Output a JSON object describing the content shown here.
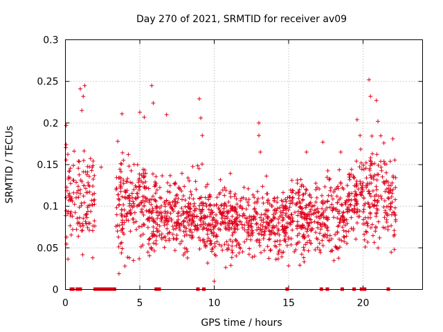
{
  "chart_data": {
    "type": "scatter",
    "title": "Day 270 of 2021, SRMTID for receiver av09",
    "xlabel": "GPS time / hours",
    "ylabel": "SRMTID / TECUs",
    "xlim": [
      0,
      24
    ],
    "ylim": [
      0,
      0.3
    ],
    "xticks": [
      0,
      5,
      10,
      15,
      20
    ],
    "xtick_labels": [
      "0",
      "5",
      "10",
      "15",
      "20"
    ],
    "yticks": [
      0,
      0.05,
      0.1,
      0.15,
      0.2,
      0.25,
      0.3
    ],
    "ytick_labels": [
      "0",
      "0.05",
      "0.1",
      "0.15",
      "0.2",
      "0.25",
      "0.3"
    ],
    "grid": true,
    "marker": "plus",
    "color": "#e0001a",
    "series": [
      {
        "name": "SRMTID",
        "segments": [
          {
            "x_start": 0.0,
            "x_end": 2.0,
            "y_center": 0.115,
            "y_spread": 0.04,
            "count": 130
          },
          {
            "x_start": 3.4,
            "x_end": 5.5,
            "y_center": 0.105,
            "y_spread": 0.035,
            "count": 170
          },
          {
            "x_start": 5.5,
            "x_end": 9.5,
            "y_center": 0.09,
            "y_spread": 0.03,
            "count": 330
          },
          {
            "x_start": 9.5,
            "x_end": 15.0,
            "y_center": 0.08,
            "y_spread": 0.027,
            "count": 450
          },
          {
            "x_start": 15.0,
            "x_end": 19.0,
            "y_center": 0.088,
            "y_spread": 0.03,
            "count": 320
          },
          {
            "x_start": 19.0,
            "x_end": 22.2,
            "y_center": 0.11,
            "y_spread": 0.035,
            "count": 250
          }
        ],
        "outliers": [
          {
            "x": 0.05,
            "y": 0.197
          },
          {
            "x": 0.05,
            "y": 0.174
          },
          {
            "x": 1.0,
            "y": 0.241
          },
          {
            "x": 1.3,
            "y": 0.245
          },
          {
            "x": 1.2,
            "y": 0.232
          },
          {
            "x": 1.1,
            "y": 0.215
          },
          {
            "x": 2.4,
            "y": 0.147
          },
          {
            "x": 3.6,
            "y": 0.019
          },
          {
            "x": 3.8,
            "y": 0.211
          },
          {
            "x": 4.0,
            "y": 0.028
          },
          {
            "x": 4.3,
            "y": 0.038
          },
          {
            "x": 5.0,
            "y": 0.213
          },
          {
            "x": 5.3,
            "y": 0.207
          },
          {
            "x": 5.8,
            "y": 0.245
          },
          {
            "x": 5.9,
            "y": 0.224
          },
          {
            "x": 6.8,
            "y": 0.21
          },
          {
            "x": 9.0,
            "y": 0.229
          },
          {
            "x": 9.1,
            "y": 0.206
          },
          {
            "x": 9.2,
            "y": 0.185
          },
          {
            "x": 10.0,
            "y": 0.01
          },
          {
            "x": 13.0,
            "y": 0.2
          },
          {
            "x": 13.0,
            "y": 0.185
          },
          {
            "x": 13.1,
            "y": 0.165
          },
          {
            "x": 16.2,
            "y": 0.165
          },
          {
            "x": 17.3,
            "y": 0.177
          },
          {
            "x": 18.5,
            "y": 0.165
          },
          {
            "x": 19.6,
            "y": 0.204
          },
          {
            "x": 19.8,
            "y": 0.185
          },
          {
            "x": 20.4,
            "y": 0.252
          },
          {
            "x": 20.5,
            "y": 0.232
          },
          {
            "x": 20.9,
            "y": 0.227
          },
          {
            "x": 21.0,
            "y": 0.202
          },
          {
            "x": 21.4,
            "y": 0.176
          },
          {
            "x": 22.0,
            "y": 0.181
          },
          {
            "x": 22.1,
            "y": 0.048
          }
        ],
        "zero_markers_x": [
          0.4,
          0.5,
          0.8,
          0.9,
          1.0,
          2.0,
          2.1,
          2.2,
          2.3,
          2.4,
          2.5,
          2.6,
          2.7,
          2.8,
          2.9,
          3.0,
          3.1,
          3.2,
          3.3,
          6.1,
          6.2,
          6.3,
          8.9,
          9.3,
          14.9,
          17.2,
          17.6,
          18.6,
          19.4,
          19.9,
          20.1,
          21.7
        ]
      }
    ]
  }
}
